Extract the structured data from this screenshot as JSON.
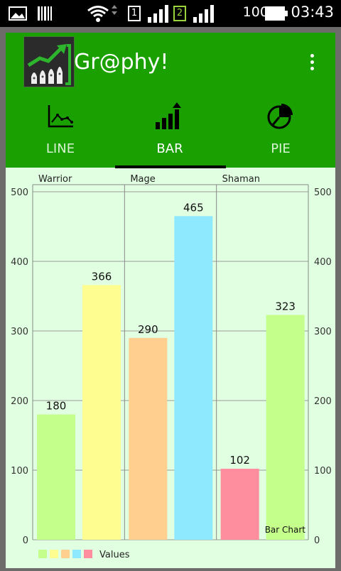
{
  "status_bar": {
    "battery_percent": "100%",
    "time": "03:43",
    "sim1_label": "1",
    "sim2_label": "2",
    "icons": [
      "image-icon",
      "barcode-icon",
      "wifi-icon",
      "sim1-signal-icon",
      "sim2-signal-icon",
      "battery-icon"
    ]
  },
  "app": {
    "title": "Gr@phy!",
    "menu_icon": "overflow-menu-icon"
  },
  "tabs": [
    {
      "label": "LINE",
      "icon": "line-chart-icon",
      "active": false
    },
    {
      "label": "BAR",
      "icon": "bar-chart-icon",
      "active": true
    },
    {
      "label": "PIE",
      "icon": "pie-chart-icon",
      "active": false
    }
  ],
  "colors": {
    "app_bar": "#1aa000",
    "background": "#e1ffe1",
    "bar_colors": [
      "#c4fe8b",
      "#fefe90",
      "#fecf8f",
      "#8fe9fe",
      "#fe8e9e",
      "#c4fe8b"
    ]
  },
  "chart_data": {
    "type": "bar",
    "description_label": "Bar Chart",
    "group_labels": [
      "Warrior",
      "Mage",
      "Shaman"
    ],
    "values": [
      180,
      366,
      290,
      465,
      102,
      323
    ],
    "value_labels": [
      "180",
      "366",
      "290",
      "465",
      "102",
      "323"
    ],
    "ylim": [
      0,
      500
    ],
    "y_ticks": [
      "0",
      "100",
      "200",
      "300",
      "400",
      "500"
    ],
    "legend": {
      "label": "Values",
      "position": "bottom-left"
    },
    "grid": true,
    "right_axis": true
  }
}
